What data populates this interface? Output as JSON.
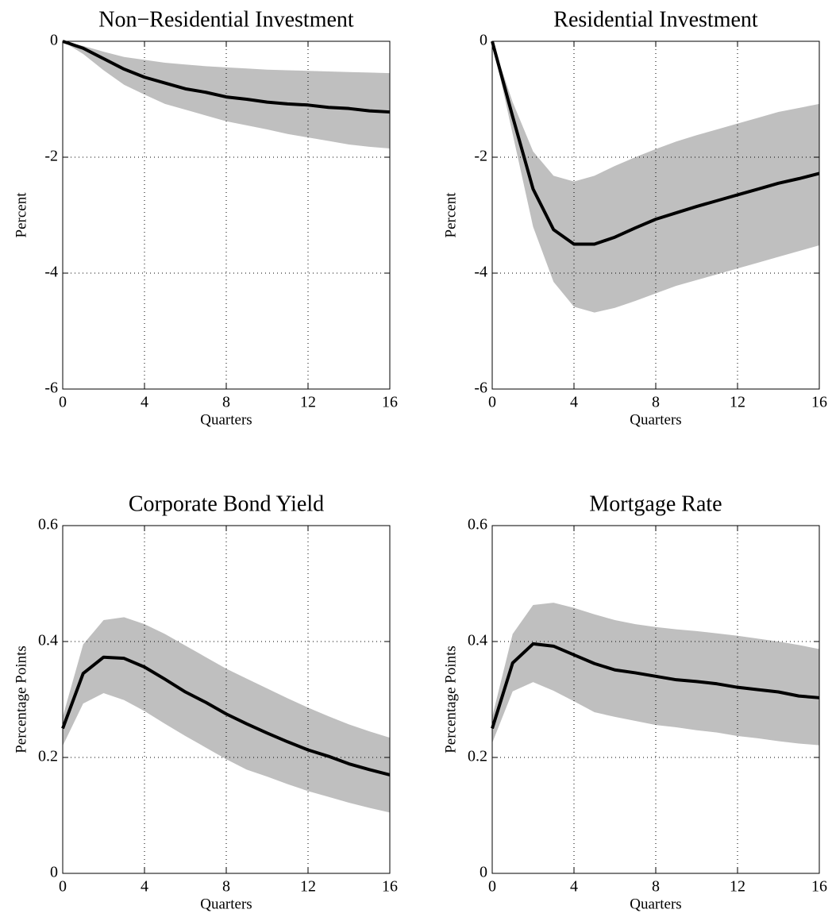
{
  "chart_data": [
    {
      "type": "line",
      "title": "Non−Residential Investment",
      "xlabel": "Quarters",
      "ylabel": "Percent",
      "x": [
        0,
        1,
        2,
        3,
        4,
        5,
        6,
        7,
        8,
        9,
        10,
        11,
        12,
        13,
        14,
        15,
        16
      ],
      "values": [
        0,
        -0.12,
        -0.3,
        -0.48,
        -0.62,
        -0.72,
        -0.82,
        -0.88,
        -0.96,
        -1.0,
        -1.05,
        -1.08,
        -1.1,
        -1.14,
        -1.16,
        -1.2,
        -1.22
      ],
      "upper": [
        0,
        -0.08,
        -0.18,
        -0.27,
        -0.32,
        -0.37,
        -0.4,
        -0.43,
        -0.45,
        -0.47,
        -0.49,
        -0.5,
        -0.51,
        -0.52,
        -0.53,
        -0.54,
        -0.55
      ],
      "lower": [
        0,
        -0.22,
        -0.5,
        -0.75,
        -0.92,
        -1.08,
        -1.18,
        -1.28,
        -1.38,
        -1.45,
        -1.52,
        -1.6,
        -1.66,
        -1.72,
        -1.78,
        -1.82,
        -1.85
      ],
      "xlim": [
        0,
        16
      ],
      "ylim": [
        -6,
        0
      ],
      "xticks": [
        0,
        4,
        8,
        12,
        16
      ],
      "yticks": [
        -6,
        -4,
        -2,
        0
      ],
      "grid": true,
      "color": "#000000",
      "band_color": "#bfbfbf"
    },
    {
      "type": "line",
      "title": "Residential Investment",
      "xlabel": "Quarters",
      "ylabel": "Percent",
      "x": [
        0,
        1,
        2,
        3,
        4,
        5,
        6,
        7,
        8,
        9,
        10,
        11,
        12,
        13,
        14,
        15,
        16
      ],
      "values": [
        0,
        -1.3,
        -2.55,
        -3.25,
        -3.5,
        -3.5,
        -3.38,
        -3.22,
        -3.07,
        -2.96,
        -2.85,
        -2.75,
        -2.65,
        -2.55,
        -2.45,
        -2.37,
        -2.28
      ],
      "upper": [
        0,
        -1.05,
        -1.9,
        -2.32,
        -2.42,
        -2.32,
        -2.15,
        -2.0,
        -1.86,
        -1.73,
        -1.62,
        -1.52,
        -1.42,
        -1.32,
        -1.22,
        -1.15,
        -1.08
      ],
      "lower": [
        0,
        -1.6,
        -3.2,
        -4.15,
        -4.58,
        -4.68,
        -4.6,
        -4.48,
        -4.35,
        -4.22,
        -4.12,
        -4.02,
        -3.92,
        -3.82,
        -3.72,
        -3.62,
        -3.52
      ],
      "xlim": [
        0,
        16
      ],
      "ylim": [
        -6,
        0
      ],
      "xticks": [
        0,
        4,
        8,
        12,
        16
      ],
      "yticks": [
        -6,
        -4,
        -2,
        0
      ],
      "grid": true,
      "color": "#000000",
      "band_color": "#bfbfbf"
    },
    {
      "type": "line",
      "title": "Corporate Bond Yield",
      "xlabel": "Quarters",
      "ylabel": "Percentage Points",
      "x": [
        0,
        1,
        2,
        3,
        4,
        5,
        6,
        7,
        8,
        9,
        10,
        11,
        12,
        13,
        14,
        15,
        16
      ],
      "values": [
        0.25,
        0.345,
        0.373,
        0.371,
        0.356,
        0.335,
        0.313,
        0.295,
        0.275,
        0.258,
        0.242,
        0.227,
        0.213,
        0.202,
        0.189,
        0.179,
        0.17
      ],
      "upper": [
        0.27,
        0.395,
        0.437,
        0.442,
        0.43,
        0.413,
        0.393,
        0.373,
        0.353,
        0.336,
        0.319,
        0.302,
        0.286,
        0.271,
        0.257,
        0.245,
        0.234
      ],
      "lower": [
        0.22,
        0.293,
        0.311,
        0.299,
        0.28,
        0.258,
        0.237,
        0.217,
        0.197,
        0.179,
        0.167,
        0.154,
        0.142,
        0.132,
        0.122,
        0.113,
        0.105
      ],
      "xlim": [
        0,
        16
      ],
      "ylim": [
        0,
        0.6
      ],
      "xticks": [
        0,
        4,
        8,
        12,
        16
      ],
      "yticks": [
        0,
        0.2,
        0.4,
        0.6
      ],
      "grid": true,
      "color": "#000000",
      "band_color": "#bfbfbf"
    },
    {
      "type": "line",
      "title": "Mortgage Rate",
      "xlabel": "Quarters",
      "ylabel": "Percentage Points",
      "x": [
        0,
        1,
        2,
        3,
        4,
        5,
        6,
        7,
        8,
        9,
        10,
        11,
        12,
        13,
        14,
        15,
        16
      ],
      "values": [
        0.25,
        0.363,
        0.396,
        0.392,
        0.377,
        0.362,
        0.351,
        0.346,
        0.34,
        0.334,
        0.331,
        0.327,
        0.321,
        0.317,
        0.313,
        0.306,
        0.303
      ],
      "upper": [
        0.27,
        0.413,
        0.463,
        0.467,
        0.458,
        0.447,
        0.437,
        0.43,
        0.425,
        0.421,
        0.418,
        0.414,
        0.41,
        0.405,
        0.4,
        0.394,
        0.387
      ],
      "lower": [
        0.225,
        0.314,
        0.33,
        0.315,
        0.297,
        0.278,
        0.27,
        0.263,
        0.256,
        0.252,
        0.247,
        0.243,
        0.237,
        0.233,
        0.228,
        0.224,
        0.221
      ],
      "xlim": [
        0,
        16
      ],
      "ylim": [
        0,
        0.6
      ],
      "xticks": [
        0,
        4,
        8,
        12,
        16
      ],
      "yticks": [
        0,
        0.2,
        0.4,
        0.6
      ],
      "grid": true,
      "color": "#000000",
      "band_color": "#bfbfbf"
    }
  ]
}
